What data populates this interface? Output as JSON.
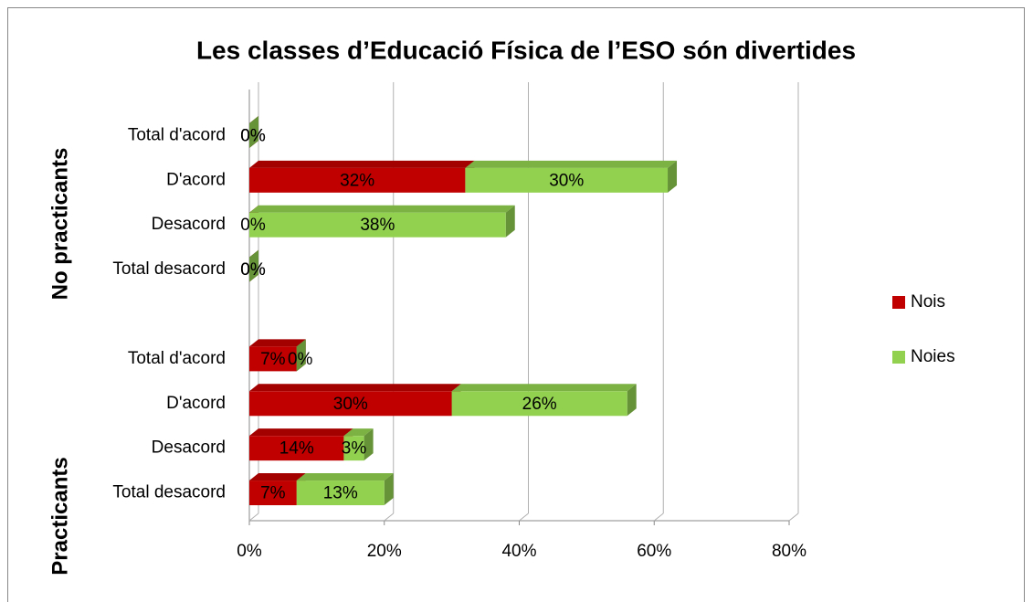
{
  "chart_data": {
    "type": "bar",
    "orientation": "horizontal",
    "stacked": true,
    "title": "Les classes d’Educació Física de l’ESO són divertides",
    "groups": [
      {
        "label": "No practicants"
      },
      {
        "label": "Practicants"
      }
    ],
    "categories": [
      "Total d'acord",
      "D'acord",
      "Desacord",
      "Total desacord",
      null,
      "Total d'acord",
      "D'acord",
      "Desacord",
      "Total desacord"
    ],
    "series": [
      {
        "name": "Nois",
        "color": "#c00000",
        "values": [
          0,
          32,
          0,
          0,
          null,
          7,
          30,
          14,
          7
        ],
        "value_labels": [
          "0%",
          "32%",
          "0%",
          "0%",
          null,
          "7%",
          "30%",
          "14%",
          "7%"
        ]
      },
      {
        "name": "Noies",
        "color": "#92d050",
        "values": [
          0,
          30,
          38,
          0,
          null,
          0,
          26,
          3,
          13
        ],
        "value_labels": [
          "0%",
          "30%",
          "38%",
          "0%",
          null,
          "0%",
          "26%",
          "3%",
          "13%"
        ]
      }
    ],
    "xlim": [
      0,
      80
    ],
    "xticks": [
      {
        "value": 0,
        "label": "0%"
      },
      {
        "value": 20,
        "label": "20%"
      },
      {
        "value": 40,
        "label": "40%"
      },
      {
        "value": 60,
        "label": "60%"
      },
      {
        "value": 80,
        "label": "80%"
      }
    ],
    "grid": true,
    "legend": "right"
  }
}
